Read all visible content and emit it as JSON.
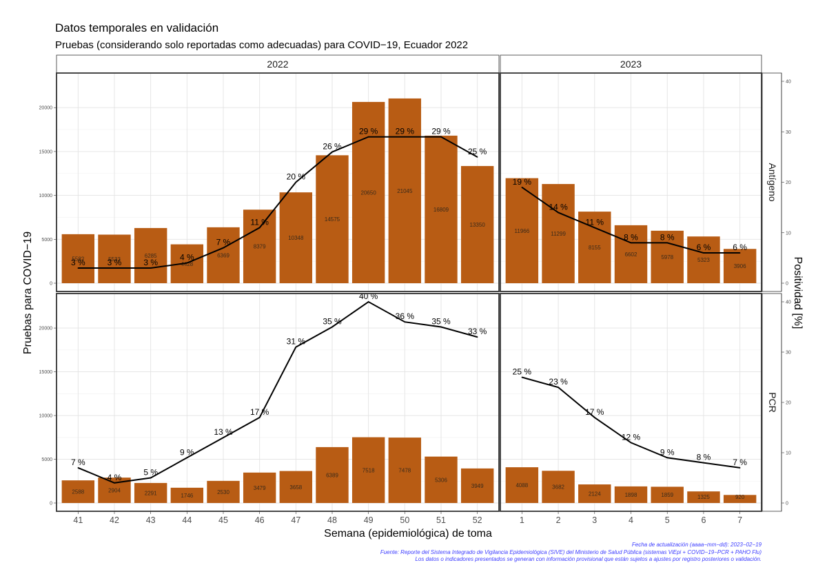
{
  "chart_data": {
    "type": "bar",
    "title": "Datos temporales en validación",
    "subtitle": "Pruebas (considerando solo reportadas como adecuadas) para COVID−19, Ecuador 2022",
    "xlabel": "Semana (epidemiológica) de toma",
    "ylabel_left": "Pruebas para COVID−19",
    "ylabel_right": "Positividad [%]",
    "columns": [
      {
        "label": "2022",
        "weeks": [
          "41",
          "42",
          "43",
          "44",
          "45",
          "46",
          "47",
          "48",
          "49",
          "50",
          "51",
          "52"
        ]
      },
      {
        "label": "2023",
        "weeks": [
          "1",
          "2",
          "3",
          "4",
          "5",
          "6",
          "7"
        ]
      }
    ],
    "rows": [
      {
        "label": "Antígeno",
        "ylim": [
          0,
          23000
        ],
        "yticks": [
          0,
          5000,
          10000,
          15000,
          20000
        ],
        "y2lim": [
          0,
          40
        ],
        "y2ticks": [
          0,
          10,
          20,
          30,
          40
        ],
        "tests": [
          [
            5582,
            5533,
            6285,
            4428,
            6369,
            8379,
            10348,
            14575,
            20650,
            21045,
            16809,
            13350
          ],
          [
            11966,
            11299,
            8155,
            6602,
            5978,
            5323,
            3906
          ]
        ],
        "test_labels": [
          [
            "5582",
            "5533",
            "6285",
            "4428",
            "6369",
            "8379",
            "10348",
            "14575",
            "20650",
            "21045",
            "16809",
            "13350"
          ],
          [
            "11966",
            "11299",
            "8155",
            "6602",
            "5978",
            "5323",
            "3906"
          ]
        ],
        "positivity": [
          [
            3,
            3,
            3,
            4,
            7,
            11,
            20,
            26,
            29,
            29,
            29,
            25
          ],
          [
            19,
            14,
            11,
            8,
            8,
            6,
            6
          ]
        ],
        "positivity_labels": [
          [
            "3 %",
            "3 %",
            "3 %",
            "4 %",
            "7 %",
            "11 %",
            "20 %",
            "26 %",
            "29 %",
            "29 %",
            "29 %",
            "25 %"
          ],
          [
            "19 %",
            "14 %",
            "11 %",
            "8 %",
            "8 %",
            "6 %",
            "6 %"
          ]
        ]
      },
      {
        "label": "PCR",
        "ylim": [
          0,
          23000
        ],
        "yticks": [
          0,
          5000,
          10000,
          15000,
          20000
        ],
        "y2lim": [
          0,
          40
        ],
        "y2ticks": [
          0,
          10,
          20,
          30,
          40
        ],
        "tests": [
          [
            2588,
            2904,
            2291,
            1746,
            2530,
            3479,
            3658,
            6389,
            7518,
            7478,
            5306,
            3949
          ],
          [
            4088,
            3682,
            2124,
            1898,
            1859,
            1325,
            920
          ]
        ],
        "test_labels": [
          [
            "2588",
            "2904",
            "2291",
            "1746",
            "2530",
            "3479",
            "3658",
            "6389",
            "7518",
            "7478",
            "5306",
            "3949"
          ],
          [
            "4088",
            "3682",
            "2124",
            "1898",
            "1859",
            "1325",
            "920"
          ]
        ],
        "positivity": [
          [
            7,
            4,
            5,
            9,
            13,
            17,
            31,
            35,
            40,
            36,
            35,
            33
          ],
          [
            25,
            23,
            17,
            12,
            9,
            8,
            7
          ]
        ],
        "positivity_labels": [
          [
            "7 %",
            "4 %",
            "5 %",
            "9 %",
            "13 %",
            "17 %",
            "31 %",
            "35 %",
            "40 %",
            "36 %",
            "35 %",
            "33 %"
          ],
          [
            "25 %",
            "23 %",
            "17 %",
            "12 %",
            "9 %",
            "8 %",
            "7 %"
          ]
        ]
      }
    ],
    "bar_color": "#b85c14",
    "line_color": "#000000"
  },
  "footer": {
    "line1": "Fecha de actualización (aaaa−mm−dd): 2023−02−19",
    "line2": "Fuente: Reporte del Sistema Integrado de Vigilancia Epidemiológica (SIVE) del Ministerio de Salud Pública (sistemas ViEpi + COVID−19−PCR + PAHO Flu)",
    "line3": "Los datos o indicadores presentados se generan con información provisional que están sujetos a ajustes por registro posteriores o validación."
  }
}
